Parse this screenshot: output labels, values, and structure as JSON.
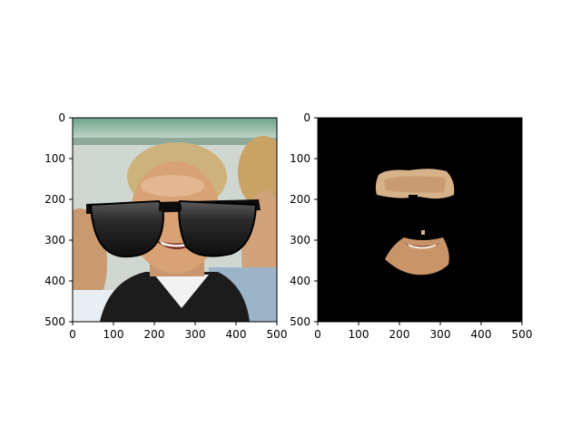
{
  "panels": [
    {
      "name": "left",
      "content": "face photo with sunglasses overlay",
      "x_ticks": [
        "0",
        "100",
        "200",
        "300",
        "400",
        "500"
      ],
      "y_ticks": [
        "0",
        "100",
        "200",
        "300",
        "400",
        "500"
      ]
    },
    {
      "name": "right",
      "content": "segmented face region (forehead and mouth) on black",
      "x_ticks": [
        "0",
        "100",
        "200",
        "300",
        "400",
        "500"
      ],
      "y_ticks": [
        "0",
        "100",
        "200",
        "300",
        "400",
        "500"
      ]
    }
  ],
  "colors": {
    "background": "#ffffff",
    "mask_background": "#000000",
    "skin": "#d8a274",
    "hair": "#cdb27c",
    "lens": "#1b1b1b"
  }
}
